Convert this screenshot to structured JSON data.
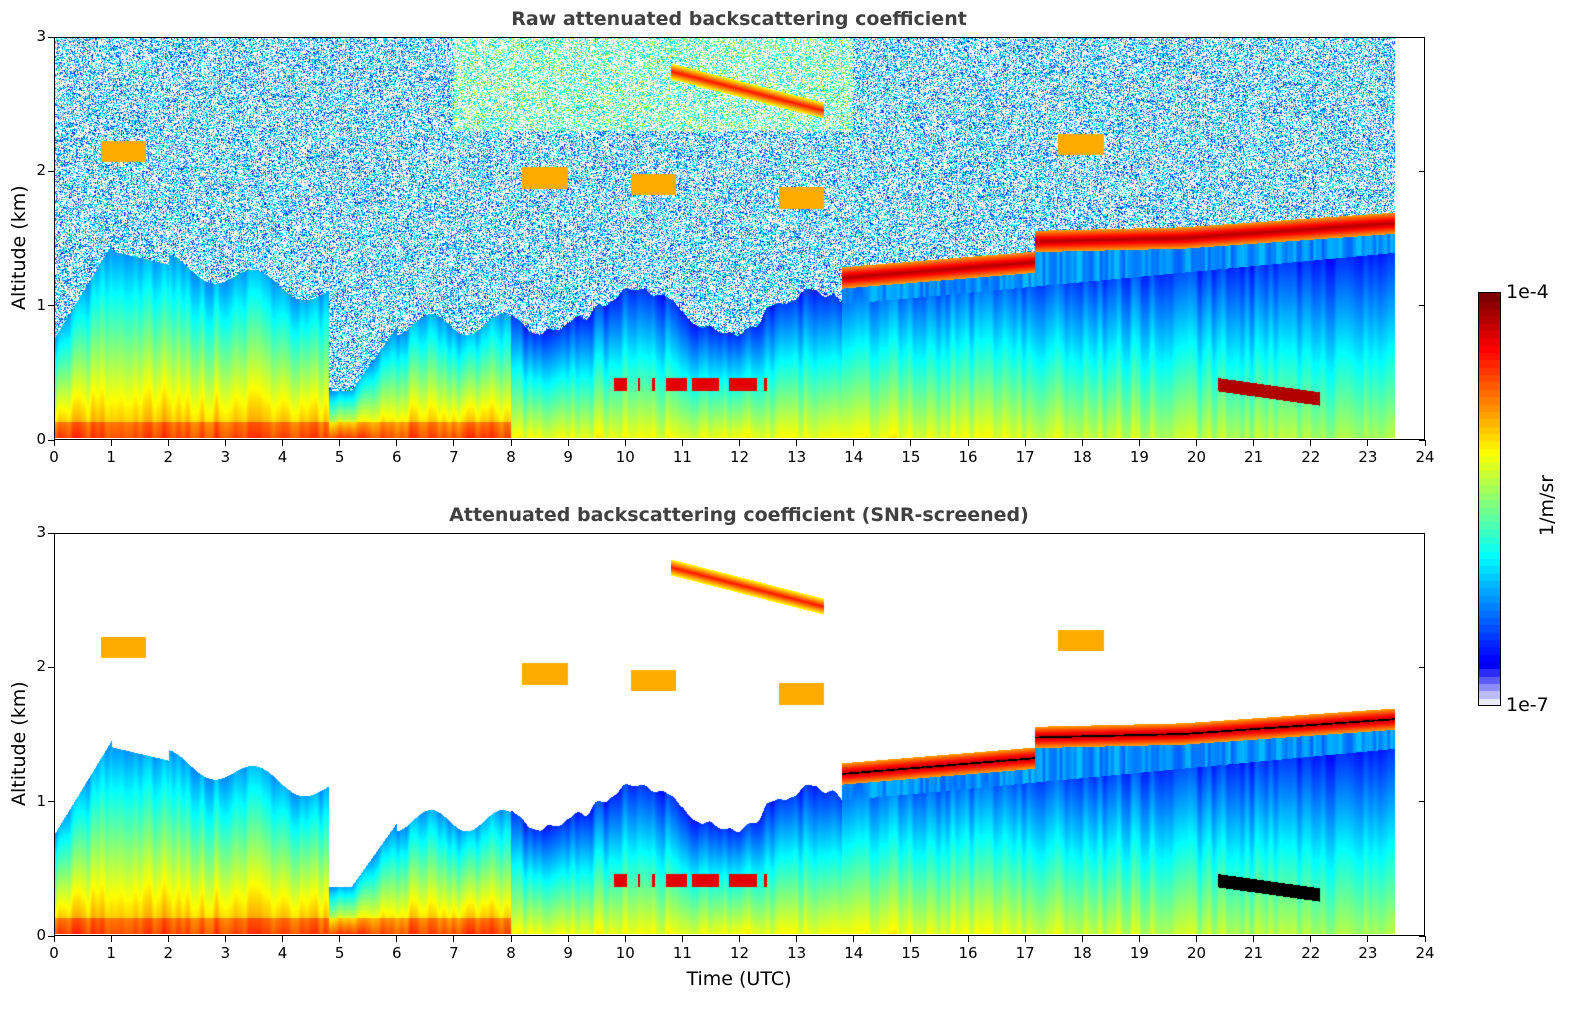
{
  "chart_data": [
    {
      "type": "heatmap",
      "title": "Raw attenuated backscattering coefficient",
      "xlabel": "",
      "ylabel": "Altitude (km)",
      "xlim": [
        0,
        24
      ],
      "ylim": [
        0,
        3
      ],
      "x_ticks": [
        "0",
        "1",
        "2",
        "3",
        "4",
        "5",
        "6",
        "7",
        "8",
        "9",
        "10",
        "11",
        "12",
        "13",
        "14",
        "15",
        "16",
        "17",
        "18",
        "19",
        "20",
        "21",
        "22",
        "23",
        "24"
      ],
      "y_ticks": [
        "0",
        "1",
        "2",
        "3"
      ],
      "data_extent_hours": [
        0,
        23.5
      ],
      "screened": false,
      "features": [
        {
          "name": "boundary-layer",
          "x_range": [
            0,
            23.5
          ],
          "top_km_approx": [
            0.7,
            1.4
          ],
          "level": "high near surface"
        },
        {
          "name": "cloud-layer-upper",
          "x_range": [
            13.8,
            23.5
          ],
          "alt_km": [
            1.2,
            1.65
          ],
          "level": "max"
        },
        {
          "name": "cirrus-arc",
          "x_range": [
            10.8,
            13.5
          ],
          "alt_km": [
            2.75,
            2.45
          ],
          "level": "high"
        },
        {
          "name": "low-cloud",
          "x_range": [
            20.4,
            22.2
          ],
          "alt_km": [
            0.4,
            0.3
          ],
          "level": "max"
        }
      ]
    },
    {
      "type": "heatmap",
      "title": "Attenuated backscattering coefficient (SNR-screened)",
      "xlabel": "Time (UTC)",
      "ylabel": "Altitude (km)",
      "xlim": [
        0,
        24
      ],
      "ylim": [
        0,
        3
      ],
      "x_ticks": [
        "0",
        "1",
        "2",
        "3",
        "4",
        "5",
        "6",
        "7",
        "8",
        "9",
        "10",
        "11",
        "12",
        "13",
        "14",
        "15",
        "16",
        "17",
        "18",
        "19",
        "20",
        "21",
        "22",
        "23",
        "24"
      ],
      "y_ticks": [
        "0",
        "1",
        "2",
        "3"
      ],
      "data_extent_hours": [
        0,
        23.5
      ],
      "screened": true
    }
  ],
  "colorbar": {
    "label": "1/m/sr",
    "max_label": "1e-4",
    "min_label": "1e-7",
    "colormap": "jet",
    "scale": "log"
  }
}
